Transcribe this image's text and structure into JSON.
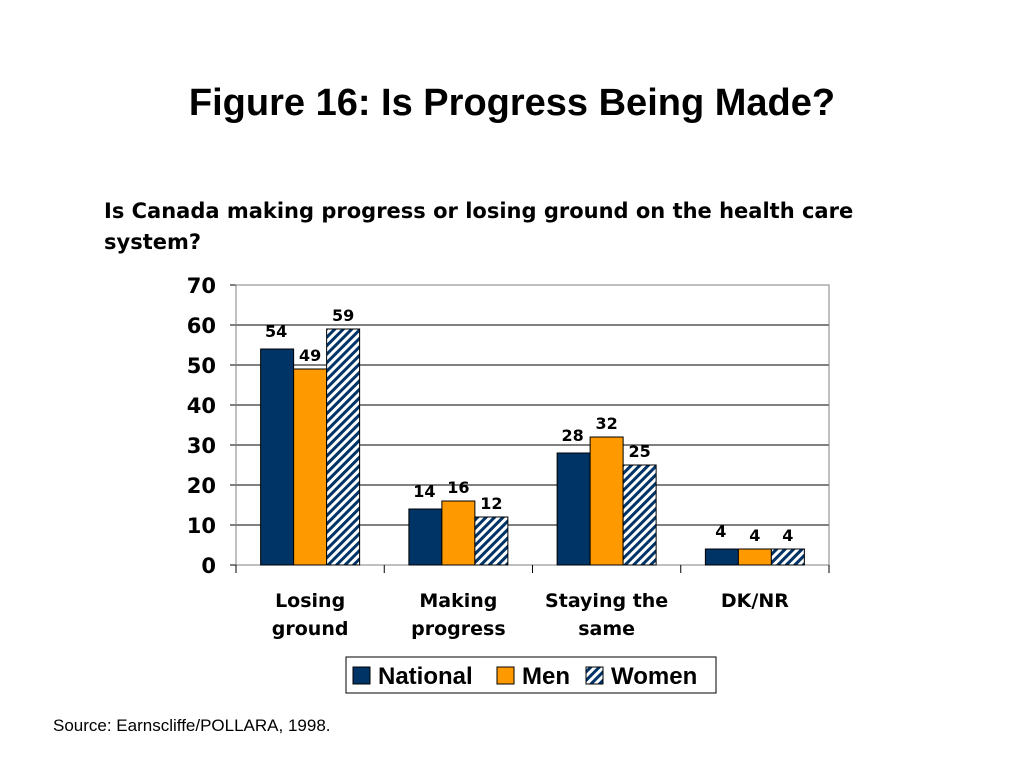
{
  "slide": {
    "title": "Figure 16: Is Progress Being Made?",
    "subtitle": "Is Canada making progress or losing ground on the health care system?",
    "source": "Source: Earnscliffe/POLLARA, 1998."
  },
  "chart_data": {
    "type": "bar",
    "categories": [
      [
        "Losing",
        "ground"
      ],
      [
        "Making",
        "progress"
      ],
      [
        "Staying the",
        "same"
      ],
      [
        "DK/NR"
      ]
    ],
    "series": [
      {
        "name": "National",
        "values": [
          54,
          14,
          28,
          4
        ],
        "color": "#003366",
        "pattern": "solid"
      },
      {
        "name": "Men",
        "values": [
          49,
          16,
          32,
          4
        ],
        "color": "#ff9900",
        "pattern": "solid"
      },
      {
        "name": "Women",
        "values": [
          59,
          12,
          25,
          4
        ],
        "color": "#003366",
        "pattern": "diagonal-hatch"
      }
    ],
    "yticks": [
      0,
      10,
      20,
      30,
      40,
      50,
      60,
      70
    ],
    "ylim": [
      0,
      70
    ],
    "grid": true,
    "legend": "bottom-center",
    "data_labels": true
  }
}
